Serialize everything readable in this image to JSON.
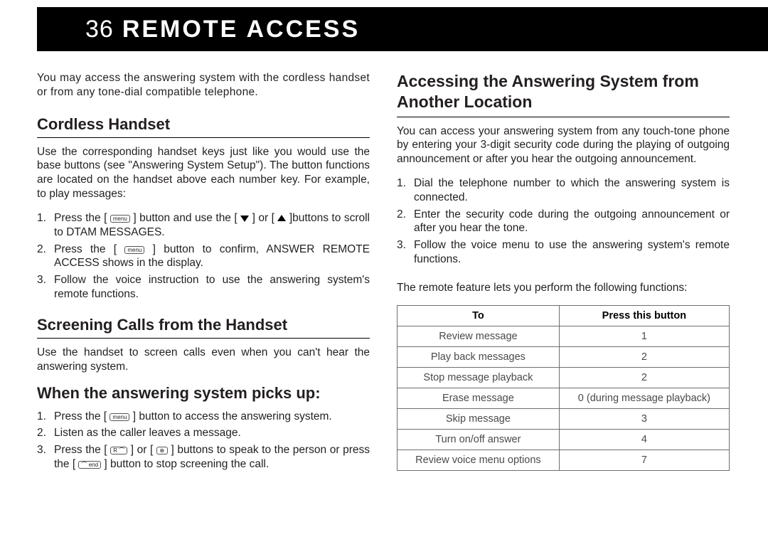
{
  "header": {
    "page_number": "36",
    "title": "REMOTE ACCESS"
  },
  "left": {
    "intro": "You may access the answering system with the cordless handset or from any tone-dial compatible telephone.",
    "section1_title": "Cordless Handset",
    "section1_para": "Use the corresponding handset keys just like you would use the base buttons (see \"Answering System Setup\"). The button functions are located on the handset above each number key. For example, to play messages:",
    "section1_steps": [
      "Press the [ {menu} ] button and use the [ {down} ] or [ {up} ]buttons to scroll to DTAM MESSAGES.",
      "Press the [ {menu} ] button to confirm, ANSWER REMOTE ACCESS shows in the display.",
      "Follow the voice instruction to use the answering system's remote functions."
    ],
    "section2_title": "Screening Calls from the Handset",
    "section2_para": "Use the handset to screen calls even when you can't hear the answering system.",
    "section3_title": "When the answering system picks up:",
    "section3_steps": [
      "Press the [ {menu} ] button to access the answering system.",
      "Listen as the caller leaves a message.",
      "Press the [ {talk} ] or [ {spk} ] buttons to speak to the person or press the [ {end} ] button to stop screening the call."
    ]
  },
  "right": {
    "section_title": "Accessing the Answering System from Another Location",
    "para1": "You can access your answering system from any touch-tone phone by entering your 3-digit security code during the playing of outgoing announcement or after you hear the outgoing announcement.",
    "steps": [
      "Dial the telephone number to which the answering system is connected.",
      "Enter the security code during the outgoing announcement or after you hear the tone.",
      "Follow the voice menu to use the answering system's remote functions."
    ],
    "para2": "The remote feature lets you perform the following functions:",
    "table": {
      "headers": [
        "To",
        "Press this button"
      ],
      "rows": [
        [
          "Review message",
          "1"
        ],
        [
          "Play back messages",
          "2"
        ],
        [
          "Stop message playback",
          "2"
        ],
        [
          "Erase message",
          "0 (during message playback)"
        ],
        [
          "Skip message",
          "3"
        ],
        [
          "Turn on/off answer",
          "4"
        ],
        [
          "Review voice menu options",
          "7"
        ]
      ]
    }
  },
  "icons": {
    "menu": "menu",
    "talk": "R ⌒",
    "spk": "⊕",
    "end": "⌒ end"
  }
}
